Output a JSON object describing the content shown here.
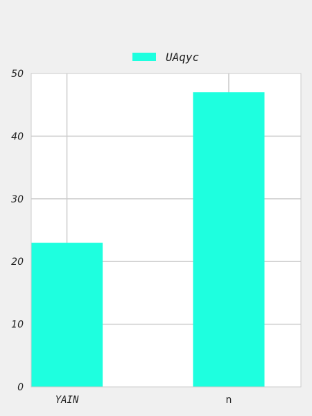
{
  "chart_data": {
    "type": "bar",
    "categories": [
      "YAIN",
      "n"
    ],
    "series": [
      {
        "name": "UAqyc",
        "values": [
          23,
          47
        ],
        "color": "#1effdf"
      }
    ],
    "ylim": [
      0,
      50
    ],
    "yticks": [
      0,
      10,
      20,
      30,
      40,
      50
    ],
    "grid": true,
    "legend_position": "top-center",
    "background": "#f0f0f0",
    "plot_background": "#ffffff"
  }
}
